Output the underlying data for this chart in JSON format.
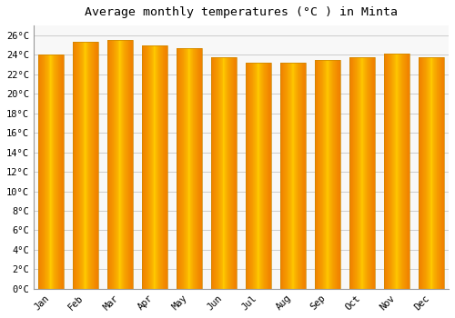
{
  "title": "Average monthly temperatures (°C ) in Minta",
  "months": [
    "Jan",
    "Feb",
    "Mar",
    "Apr",
    "May",
    "Jun",
    "Jul",
    "Aug",
    "Sep",
    "Oct",
    "Nov",
    "Dec"
  ],
  "values": [
    24.0,
    25.3,
    25.5,
    25.0,
    24.7,
    23.7,
    23.2,
    23.2,
    23.5,
    23.7,
    24.1,
    23.7
  ],
  "ylim": [
    0,
    27
  ],
  "yticks": [
    0,
    2,
    4,
    6,
    8,
    10,
    12,
    14,
    16,
    18,
    20,
    22,
    24,
    26
  ],
  "bar_color_center": "#FFD000",
  "bar_color_edge": "#F08000",
  "bar_outline_color": "#CC8800",
  "background_color": "#FFFFFF",
  "plot_bg_color": "#F8F8F8",
  "grid_color": "#CCCCCC",
  "title_fontsize": 9.5,
  "tick_fontsize": 7.5,
  "bar_width": 0.72
}
